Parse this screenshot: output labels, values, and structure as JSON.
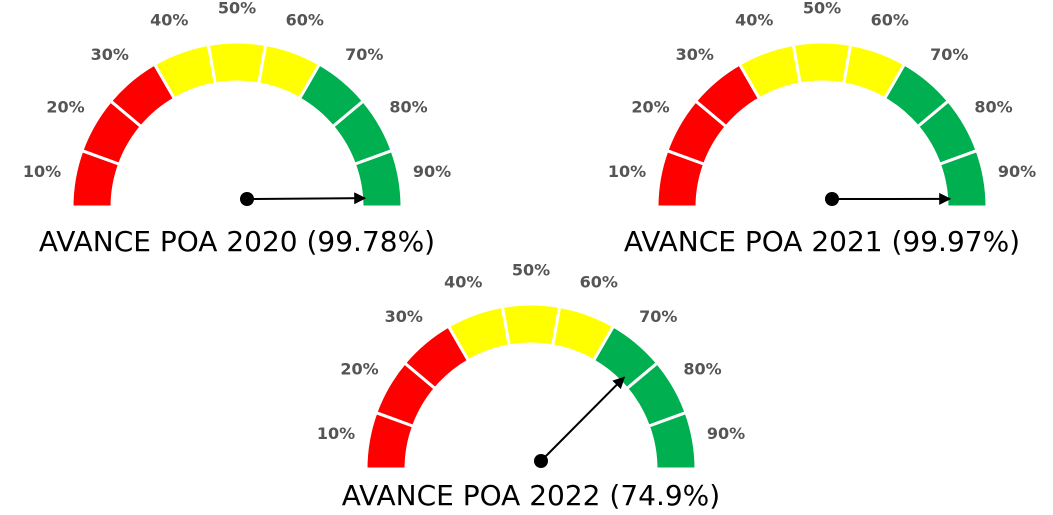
{
  "chart_data": [
    {
      "type": "gauge",
      "title": "AVANCE POA 2020 (99.78%)",
      "value": 99.78,
      "ylim": [
        0,
        100
      ],
      "categories": [
        "10%",
        "20%",
        "30%",
        "40%",
        "50%",
        "60%",
        "70%",
        "80%",
        "90%"
      ],
      "colors": [
        "#ff0000",
        "#ff0000",
        "#ff0000",
        "#ffff00",
        "#ffff00",
        "#ffff00",
        "#00b050",
        "#00b050",
        "#00b050"
      ]
    },
    {
      "type": "gauge",
      "title": "AVANCE POA 2021 (99.97%)",
      "value": 99.97,
      "ylim": [
        0,
        100
      ],
      "categories": [
        "10%",
        "20%",
        "30%",
        "40%",
        "50%",
        "60%",
        "70%",
        "80%",
        "90%"
      ],
      "colors": [
        "#ff0000",
        "#ff0000",
        "#ff0000",
        "#ffff00",
        "#ffff00",
        "#ffff00",
        "#00b050",
        "#00b050",
        "#00b050"
      ]
    },
    {
      "type": "gauge",
      "title": "AVANCE POA 2022 (74.9%)",
      "value": 74.9,
      "ylim": [
        0,
        100
      ],
      "categories": [
        "10%",
        "20%",
        "30%",
        "40%",
        "50%",
        "60%",
        "70%",
        "80%",
        "90%"
      ],
      "colors": [
        "#ff0000",
        "#ff0000",
        "#ff0000",
        "#ffff00",
        "#ffff00",
        "#ffff00",
        "#00b050",
        "#00b050",
        "#00b050"
      ]
    }
  ]
}
